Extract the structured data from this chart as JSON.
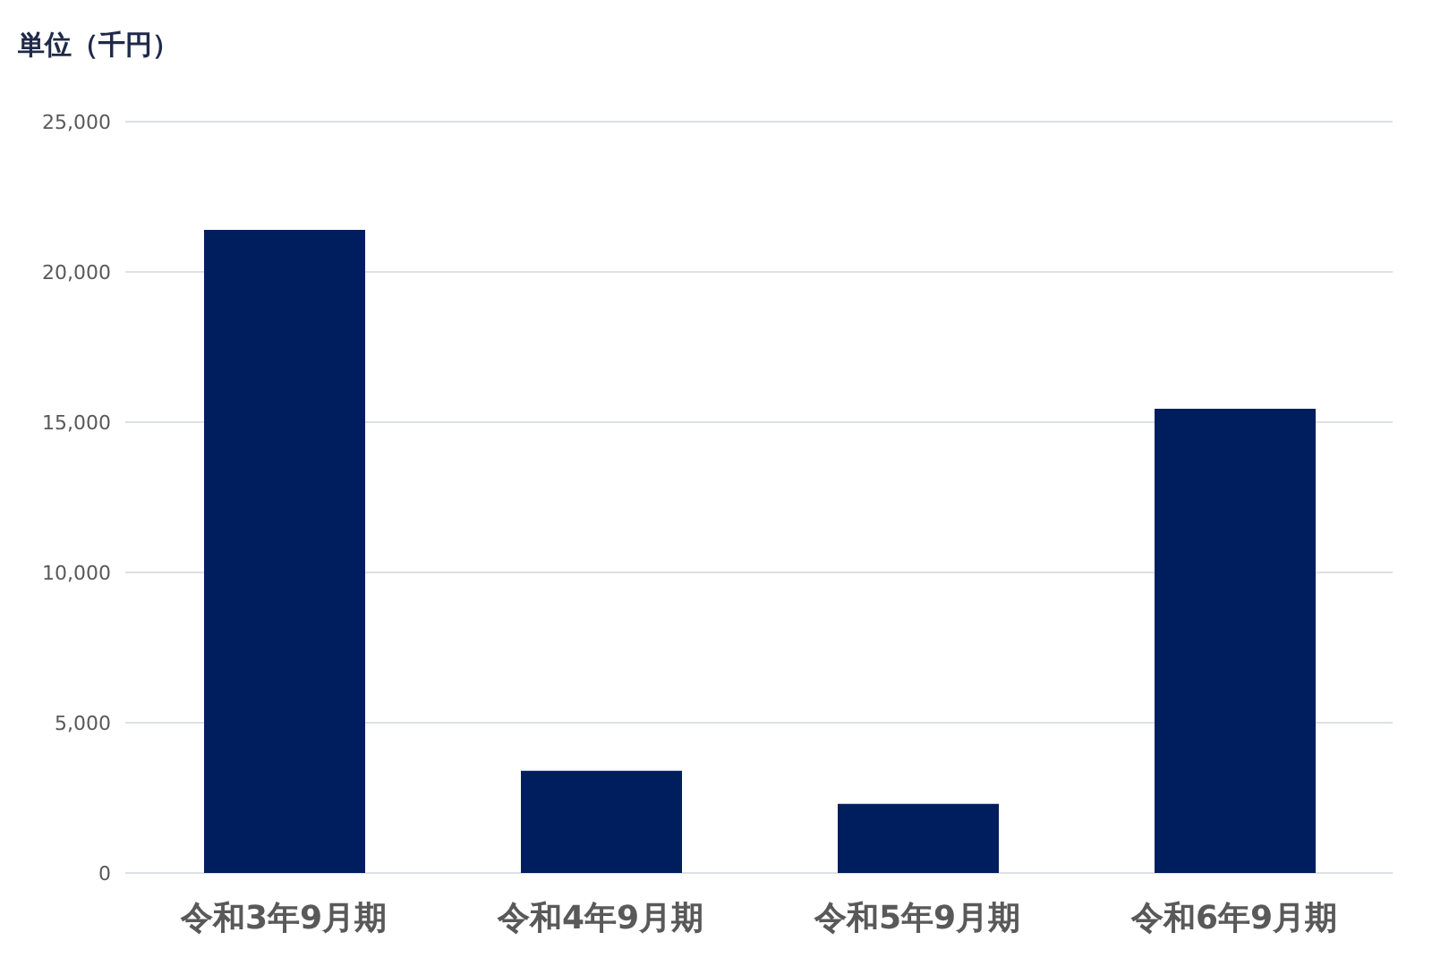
{
  "chart_data": {
    "type": "bar",
    "title": "単位（千円）",
    "categories": [
      "令和3年9月期",
      "令和4年9月期",
      "令和5年9月期",
      "令和6年9月期"
    ],
    "values": [
      21400,
      3400,
      2300,
      15450
    ],
    "color": "#001e5e",
    "ylim": [
      0,
      25000
    ],
    "yticks": [
      {
        "value": 0,
        "label": "0"
      },
      {
        "value": 5000,
        "label": "5,000"
      },
      {
        "value": 10000,
        "label": "10,000"
      },
      {
        "value": 15000,
        "label": "15,000"
      },
      {
        "value": 20000,
        "label": "20,000"
      },
      {
        "value": 25000,
        "label": "25,000"
      }
    ],
    "grid": "y"
  }
}
